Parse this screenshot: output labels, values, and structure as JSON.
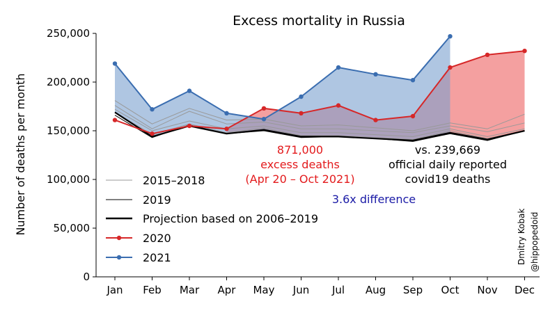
{
  "chart_data": {
    "type": "line",
    "title": "Excess mortality in Russia",
    "ylabel": "Number of deaths per month",
    "xlabel": "",
    "categories": [
      "Jan",
      "Feb",
      "Mar",
      "Apr",
      "May",
      "Jun",
      "Jul",
      "Aug",
      "Sep",
      "Oct",
      "Nov",
      "Dec"
    ],
    "ylim": [
      0,
      250000
    ],
    "yticks": [
      0,
      50000,
      100000,
      150000,
      200000,
      250000
    ],
    "ytick_labels": [
      "0",
      "50,000",
      "100,000",
      "150,000",
      "200,000",
      "250,000"
    ],
    "grid": false,
    "legend_position": "lower-left",
    "legend": [
      {
        "label": "2015–2018",
        "style": "thin-gray"
      },
      {
        "label": "2019",
        "style": "thin-black"
      },
      {
        "label": "Projection based on 2006–2019",
        "style": "thick-black"
      },
      {
        "label": "2020",
        "style": "red-markers"
      },
      {
        "label": "2021",
        "style": "blue-markers"
      }
    ],
    "series": [
      {
        "name": "2015–2018",
        "kind": "thin-gray",
        "values": [
          181000,
          157000,
          173000,
          161000,
          162000,
          155000,
          156000,
          153000,
          150000,
          158000,
          152000,
          167000
        ]
      },
      {
        "name": "2015–2018",
        "kind": "thin-gray",
        "values": [
          176000,
          152000,
          170000,
          157000,
          159000,
          152000,
          152000,
          150000,
          148000,
          155000,
          149000,
          158000
        ]
      },
      {
        "name": "2015–2018",
        "kind": "thin-gray",
        "values": [
          172000,
          150000,
          160000,
          152000,
          155000,
          148000,
          148000,
          146000,
          144000,
          152000,
          144000,
          152000
        ]
      },
      {
        "name": "2015–2018",
        "kind": "thin-gray",
        "values": [
          169000,
          146000,
          157000,
          148000,
          153000,
          145000,
          145000,
          143000,
          141000,
          150000,
          142000,
          150000
        ]
      },
      {
        "name": "2019",
        "kind": "thin-black",
        "values": [
          166000,
          143000,
          156000,
          147000,
          150000,
          143000,
          144000,
          142000,
          139000,
          147000,
          140000,
          150000
        ]
      },
      {
        "name": "Projection based on 2006–2019",
        "kind": "thick-black",
        "values": [
          169000,
          144000,
          155000,
          147000,
          151000,
          144000,
          144000,
          142000,
          140000,
          148000,
          141000,
          150000
        ]
      },
      {
        "name": "2020",
        "kind": "red",
        "values": [
          161000,
          147000,
          155000,
          152000,
          173000,
          168000,
          176000,
          161000,
          165000,
          215000,
          228000,
          232000
        ]
      },
      {
        "name": "2021",
        "kind": "blue",
        "values": [
          219000,
          172000,
          191000,
          168000,
          162000,
          185000,
          215000,
          208000,
          202000,
          247000,
          null,
          null
        ]
      }
    ],
    "annotations": {
      "excess_line1": "871,000",
      "excess_line2": "excess deaths",
      "excess_line3": "(Apr 20 – Oct 2021)",
      "official_line1": "vs. 239,669",
      "official_line2": "official daily reported",
      "official_line3": "covid19 deaths",
      "difference": "3.6x difference"
    },
    "credit_line1": "Dmitry Kobak",
    "credit_line2": "@hippopedoid",
    "colors": {
      "red": "#d62728",
      "red_fill": "#f08080",
      "blue": "#3a6db0",
      "blue_fill": "#7aa0cf",
      "gray": "#999999",
      "difference": "#1a1aa6"
    }
  }
}
